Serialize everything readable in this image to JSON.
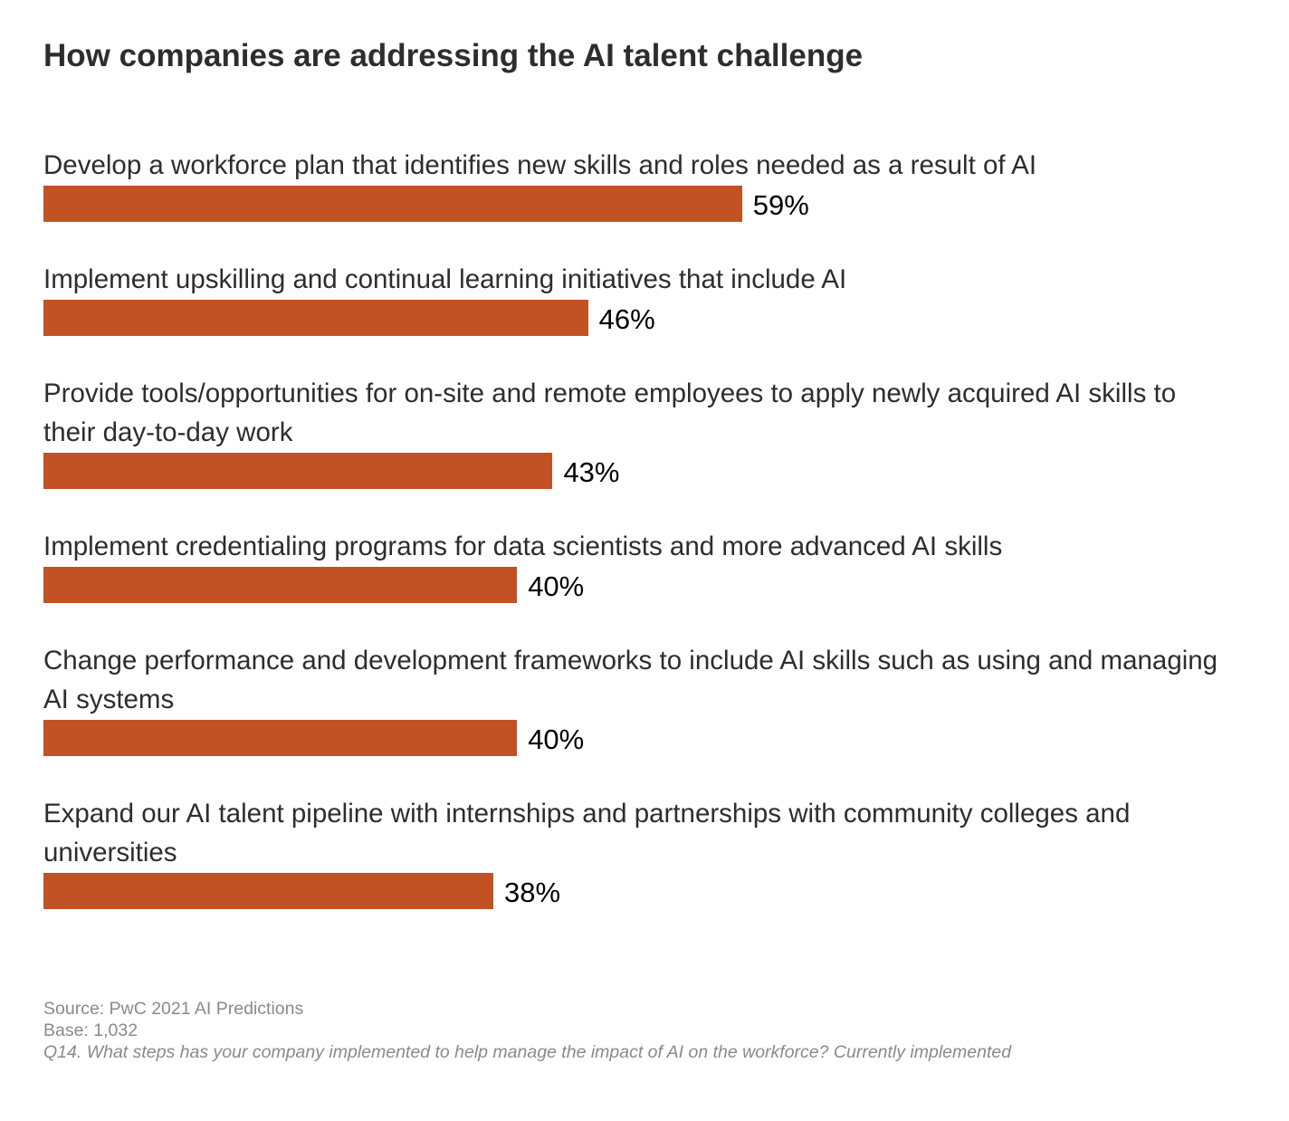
{
  "chart_data": {
    "type": "bar",
    "orientation": "horizontal",
    "title": "How companies are addressing the AI talent challenge",
    "categories": [
      "Develop a workforce plan that identifies new skills and roles needed as a result of AI",
      "Implement upskilling and continual learning initiatives that include AI",
      "Provide tools/opportunities for on-site and remote employees to apply newly acquired AI skills to their day-to-day work",
      "Implement credentialing programs for data scientists and more advanced AI skills",
      "Change performance and development frameworks to include AI skills such as using and managing AI systems",
      "Expand our AI talent pipeline with internships and partnerships with community colleges and universities"
    ],
    "values": [
      59,
      46,
      43,
      40,
      40,
      38
    ],
    "value_labels": [
      "59%",
      "46%",
      "43%",
      "40%",
      "40%",
      "38%"
    ],
    "unit": "%",
    "xlim": [
      0,
      100
    ],
    "grid": false,
    "bar_color": "#c25124"
  },
  "footnotes": {
    "source": "Source: PwC 2021 AI Predictions",
    "base": "Base: 1,032",
    "question": "Q14. What steps has your company implemented to help manage the impact of AI on the workforce? Currently implemented"
  }
}
